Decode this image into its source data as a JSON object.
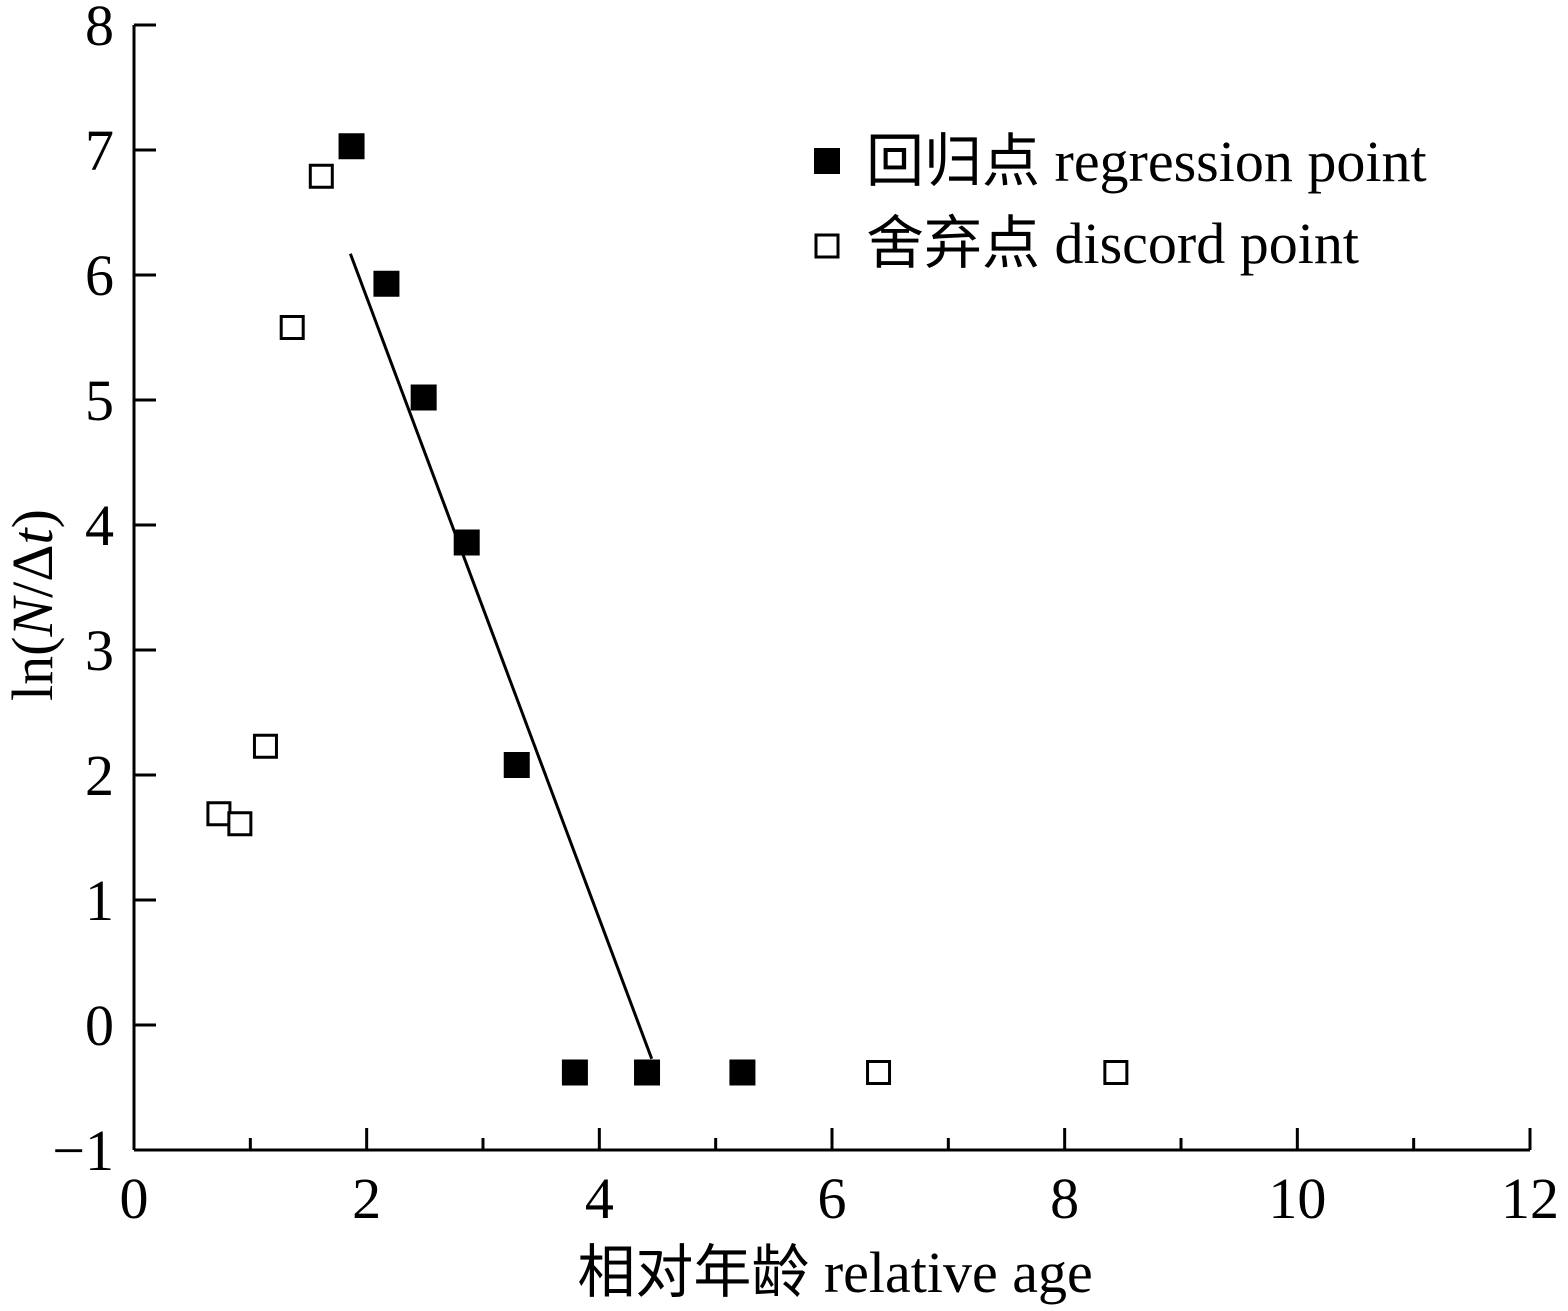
{
  "chart_data": {
    "type": "scatter",
    "xlabel": "相对年龄 relative age",
    "ylabel_parts": [
      "ln(",
      "N",
      "/Δ",
      "t",
      ")"
    ],
    "xlim": [
      0,
      12
    ],
    "ylim": [
      -1,
      8
    ],
    "x_ticks": [
      "0",
      "2",
      "4",
      "6",
      "8",
      "10",
      "12"
    ],
    "y_ticks": [
      "−1",
      "0",
      "1",
      "2",
      "3",
      "4",
      "5",
      "6",
      "7",
      "8"
    ],
    "x_tick_values": [
      0,
      2,
      4,
      6,
      8,
      10,
      12
    ],
    "x_minor_tick_values": [
      1,
      3,
      5,
      7,
      9,
      11
    ],
    "y_tick_values": [
      -1,
      0,
      1,
      2,
      3,
      4,
      5,
      6,
      7,
      8
    ],
    "legend_position": "top-right",
    "series": [
      {
        "name": "回归点 regression point",
        "marker": "filled-square",
        "color": "#000000",
        "points": [
          {
            "x": 1.87,
            "y": 7.03
          },
          {
            "x": 2.17,
            "y": 5.93
          },
          {
            "x": 2.49,
            "y": 5.02
          },
          {
            "x": 2.86,
            "y": 3.86
          },
          {
            "x": 3.29,
            "y": 2.08
          },
          {
            "x": 3.79,
            "y": -0.38
          },
          {
            "x": 4.41,
            "y": -0.38
          },
          {
            "x": 5.23,
            "y": -0.38
          }
        ]
      },
      {
        "name": "舍弃点 discord point",
        "marker": "open-square",
        "color": "#000000",
        "points": [
          {
            "x": 0.73,
            "y": 1.69
          },
          {
            "x": 0.91,
            "y": 1.61
          },
          {
            "x": 1.13,
            "y": 2.23
          },
          {
            "x": 1.36,
            "y": 5.58
          },
          {
            "x": 1.61,
            "y": 6.79
          },
          {
            "x": 6.4,
            "y": -0.38
          },
          {
            "x": 8.44,
            "y": -0.38
          }
        ]
      }
    ],
    "fit_line": {
      "x": [
        1.86,
        4.45
      ],
      "y": [
        6.17,
        -0.27
      ]
    }
  }
}
